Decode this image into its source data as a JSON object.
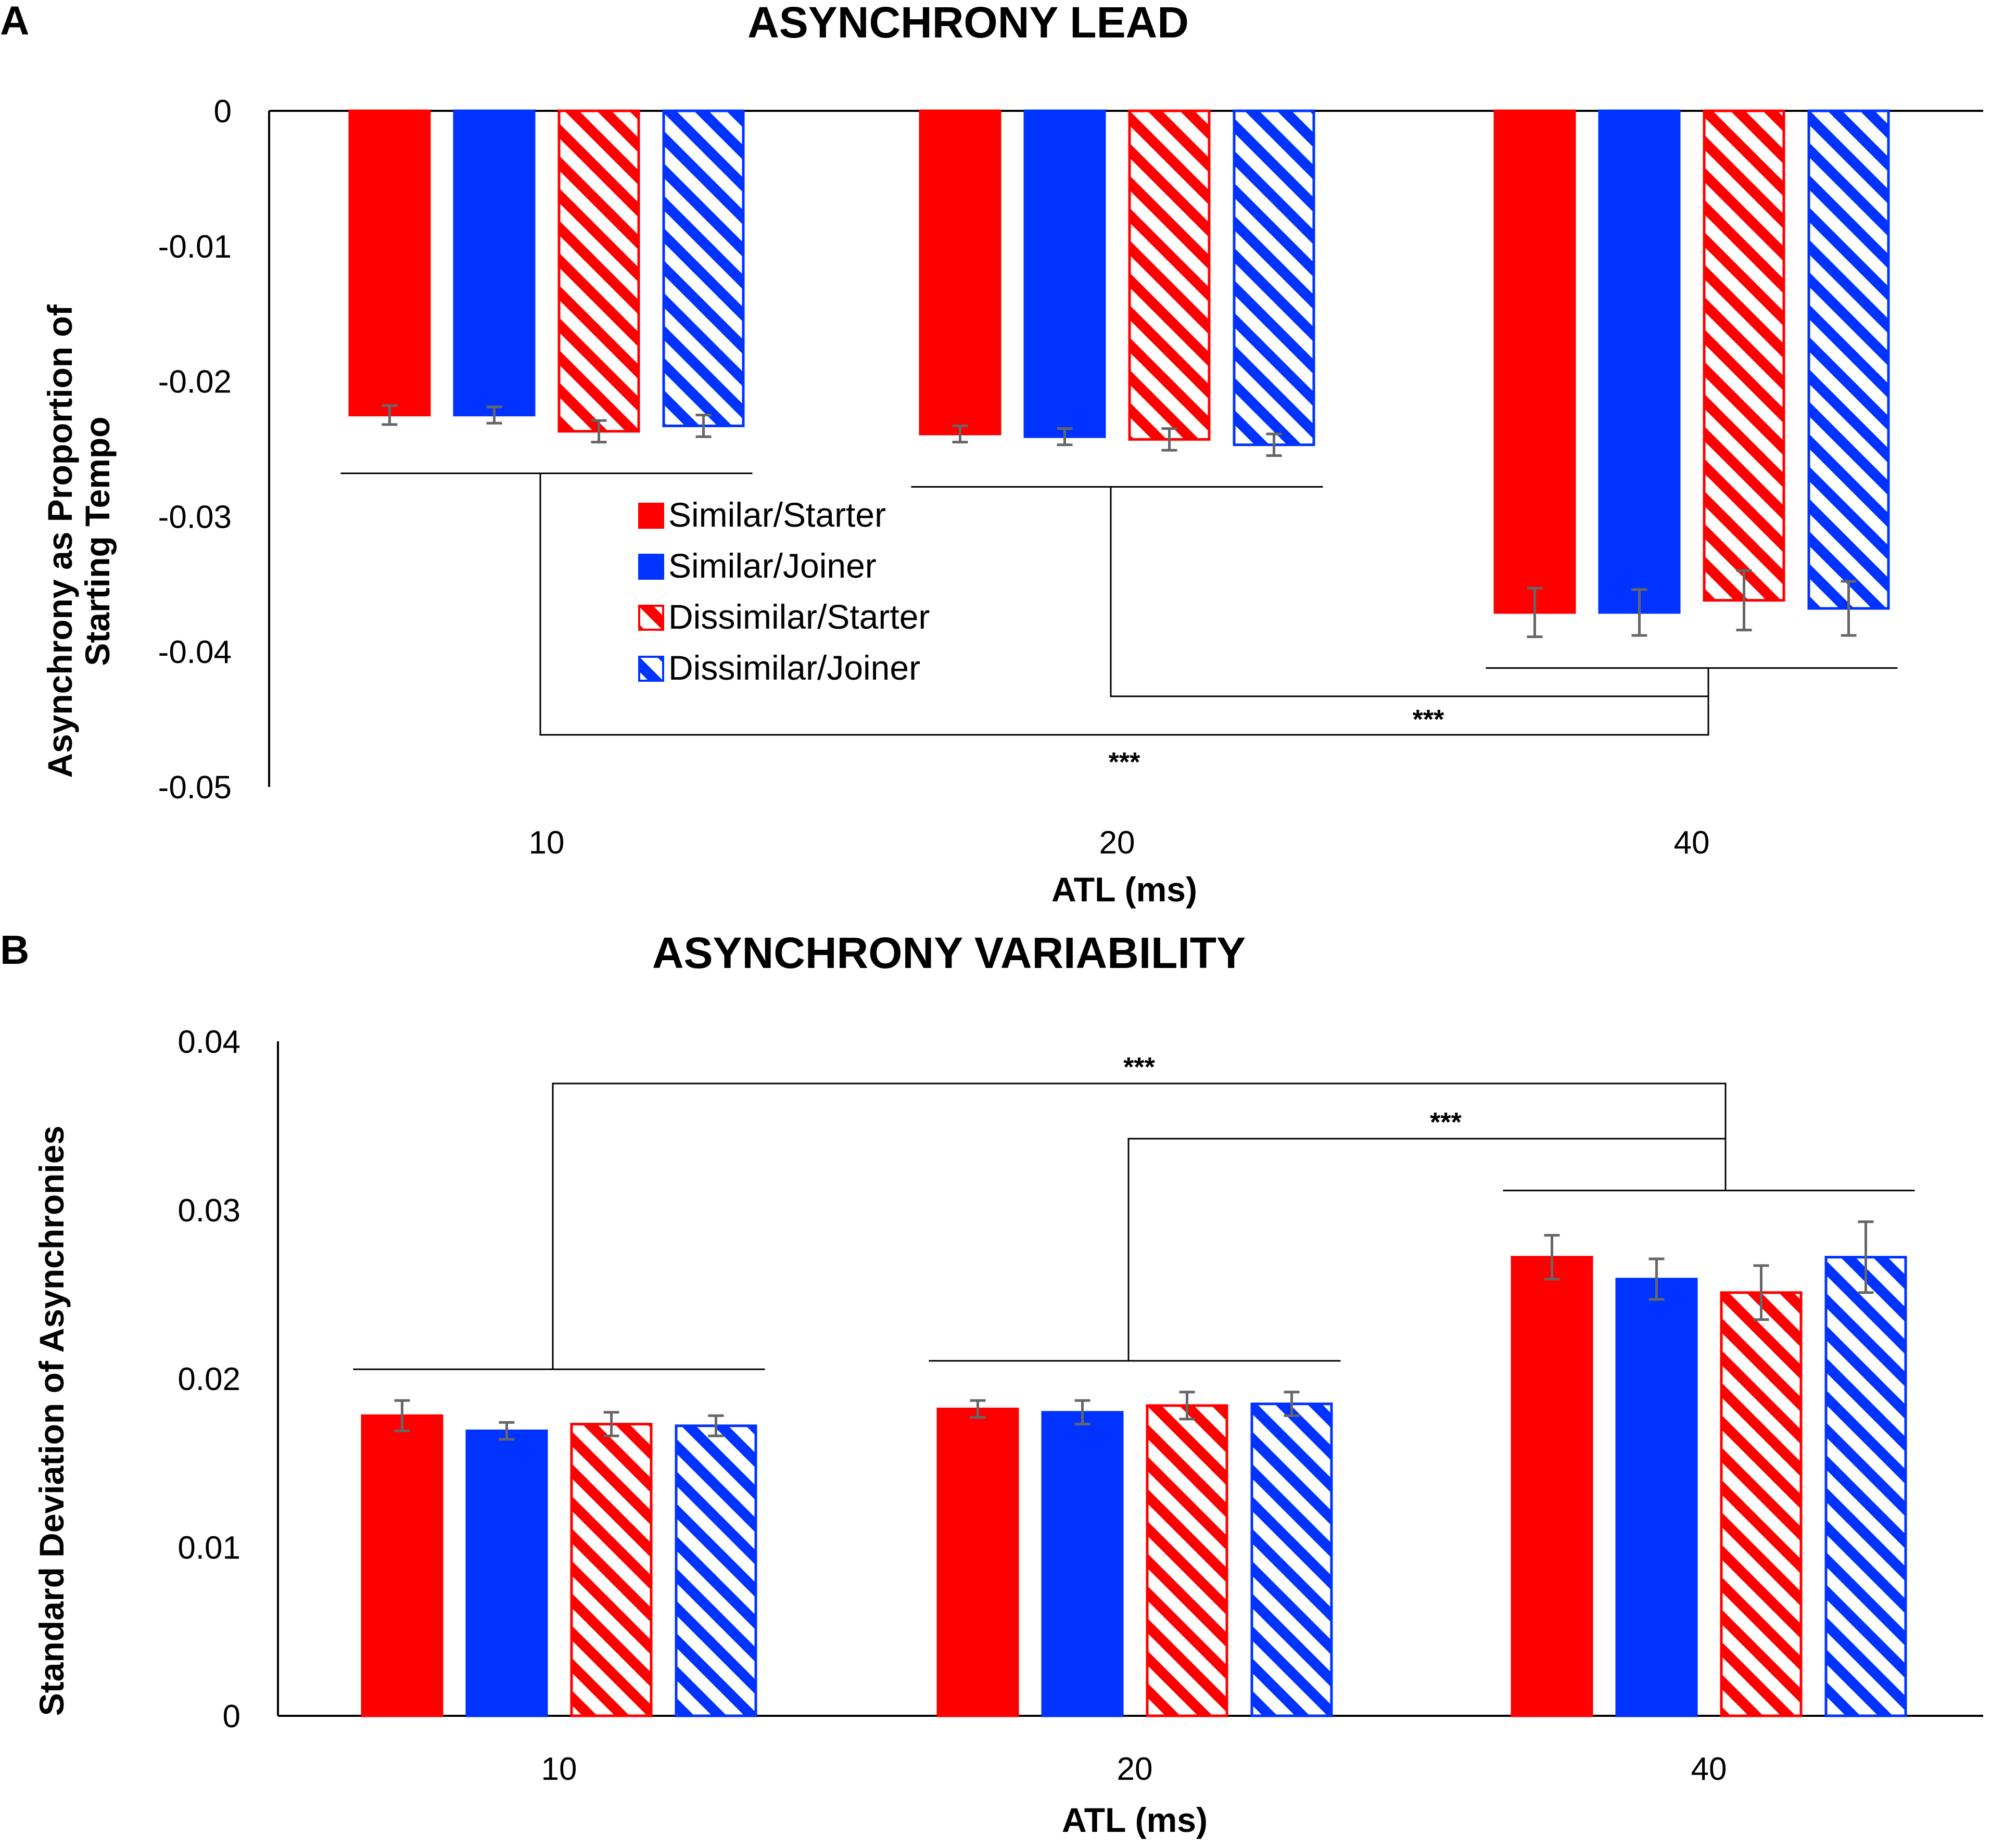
{
  "legend": [
    {
      "label": "Similar/Starter",
      "color": "#ff0000",
      "pattern": "solid"
    },
    {
      "label": "Similar/Joiner",
      "color": "#0033ff",
      "pattern": "solid"
    },
    {
      "label": "Dissimilar/Starter",
      "color": "#ff0000",
      "pattern": "hatched"
    },
    {
      "label": "Dissimilar/Joiner",
      "color": "#0033ff",
      "pattern": "hatched"
    }
  ],
  "colors": {
    "red": "#ff0000",
    "blue": "#0033ff",
    "error_bar": "#666666",
    "axis": "#000000"
  },
  "chart_data": [
    {
      "panel_label": "A",
      "type": "bar",
      "title": "ASYNCHRONY LEAD",
      "xlabel": "ATL (ms)",
      "ylabel_lines": [
        "Asynchrony as Proportion of",
        "Starting Tempo"
      ],
      "ylim": [
        -0.05,
        0
      ],
      "yticks": [
        0,
        -0.01,
        -0.02,
        -0.03,
        -0.04,
        -0.05
      ],
      "ytick_labels": [
        "0",
        "-0.01",
        "-0.02",
        "-0.03",
        "-0.04",
        "-0.05"
      ],
      "categories": [
        "10",
        "20",
        "40"
      ],
      "series": [
        {
          "name": "Similar/Starter",
          "values": [
            -0.0225,
            -0.0239,
            -0.0371
          ],
          "errors": [
            0.0007,
            0.0006,
            0.0018
          ]
        },
        {
          "name": "Similar/Joiner",
          "values": [
            -0.0225,
            -0.0241,
            -0.0371
          ],
          "errors": [
            0.0006,
            0.0006,
            0.0017
          ]
        },
        {
          "name": "Dissimilar/Starter",
          "values": [
            -0.0237,
            -0.0243,
            -0.0362
          ],
          "errors": [
            0.0008,
            0.0008,
            0.0022
          ]
        },
        {
          "name": "Dissimilar/Joiner",
          "values": [
            -0.0233,
            -0.0247,
            -0.0368
          ],
          "errors": [
            0.0008,
            0.0008,
            0.002
          ]
        }
      ],
      "significance": [
        {
          "from": "10",
          "to": "40",
          "label": "***"
        },
        {
          "from": "20",
          "to": "40",
          "label": "***"
        }
      ]
    },
    {
      "panel_label": "B",
      "type": "bar",
      "title": "ASYNCHRONY VARIABILITY",
      "xlabel": "ATL (ms)",
      "ylabel_lines": [
        "Standard Deviation of Asynchronies"
      ],
      "ylim": [
        0,
        0.04
      ],
      "yticks": [
        0,
        0.01,
        0.02,
        0.03,
        0.04
      ],
      "ytick_labels": [
        "0",
        "0.01",
        "0.02",
        "0.03",
        "0.04"
      ],
      "categories": [
        "10",
        "20",
        "40"
      ],
      "series": [
        {
          "name": "Similar/Starter",
          "values": [
            0.0178,
            0.0182,
            0.0272
          ],
          "errors": [
            0.0009,
            0.0005,
            0.0013
          ]
        },
        {
          "name": "Similar/Joiner",
          "values": [
            0.0169,
            0.018,
            0.0259
          ],
          "errors": [
            0.0005,
            0.0007,
            0.0012
          ]
        },
        {
          "name": "Dissimilar/Starter",
          "values": [
            0.0173,
            0.0184,
            0.0251
          ],
          "errors": [
            0.0007,
            0.0008,
            0.0016
          ]
        },
        {
          "name": "Dissimilar/Joiner",
          "values": [
            0.0172,
            0.0185,
            0.0272
          ],
          "errors": [
            0.0006,
            0.0007,
            0.0021
          ]
        }
      ],
      "significance": [
        {
          "from": "10",
          "to": "40",
          "label": "***"
        },
        {
          "from": "20",
          "to": "40",
          "label": "***"
        }
      ]
    }
  ]
}
